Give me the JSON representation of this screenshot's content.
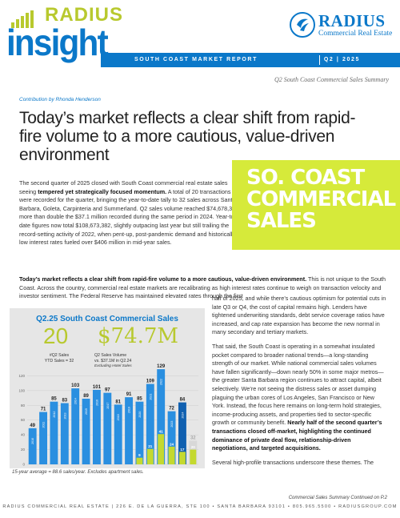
{
  "masthead": {
    "brand_small": "RADIUS",
    "brand_big": "insight",
    "logo_name": "RADIUS",
    "logo_sub": "Commercial Real Estate",
    "band_left": "SOUTH COAST MARKET REPORT",
    "band_right": "Q2 | 2025"
  },
  "summary_title": "Q2 South Coast Commercial Sales Summary",
  "contribution": "Contribution by Rhonda Henderson",
  "headline": "Today’s market reflects a clear shift from rapid-fire volume to a more cautious, value-driven environment",
  "intro": {
    "p1": "The second quarter of 2025 closed with South Coast commercial real estate sales seeing ",
    "p1_bold": "tempered yet strategically focused momentum.",
    "p2": " A total of 20 transactions were recorded for the quarter, bringing the year-to-date tally to 32 sales across Santa Barbara, Goleta, Carpinteria and Summerland. Q2 sales volume reached $74,678,382—more than double the $37.1 million recorded during the same period in 2024. Year-to-date figures now total $108,673,382, slightly outpacing last year but still trailing the record-setting activity of 2022, when pent-up, post-pandemic demand and historically low interest rates fueled over $406 million in mid-year sales."
  },
  "hero": [
    "SO. COAST",
    "COMMERCIAL",
    "SALES"
  ],
  "lead": {
    "bold": "Today’s market reflects a clear shift from rapid-fire volume to a more cautious, value-driven environment.",
    "text": " This is not unique to the South Coast. Across the country, commercial real estate markets are recalibrating as high interest rates continue to weigh on transaction velocity and investor sentiment. The Federal Reserve has maintained elevated rates through the first"
  },
  "right_col": {
    "p1": "half of 2025, and while there’s cautious optimism for potential cuts in late Q3 or Q4, the cost of capital remains high. Lenders have tightened underwriting standards, debt service coverage ratios have increased, and cap rate expansion has become the new normal in many secondary and tertiary markets.",
    "p2": "That said, the South Coast is operating in a somewhat insulated pocket compared to broader national trends—a long-standing strength of our market. While national commercial sales volumes have fallen significantly—down nearly 50% in some major metros—the greater Santa Barbara region continues to attract capital, albeit selectively. We’re not seeing the distress sales or asset dumping plaguing the urban cores of Los Angeles, San Francisco or New York. Instead, the focus here remains on long-term hold strategies, income-producing assets, and properties tied to sector-specific growth or community benefit. ",
    "p2_bold": "Nearly half of the second quarter’s transactions closed off-market, highlighting the continued dominance of private deal flow, relationship-driven negotiations, and targeted acquisitions.",
    "p3": "Several high-profile transactions underscore these themes. The"
  },
  "continued": "Commercial Sales Summary Continued on P.2",
  "footnote": "15-year average = 88.6 sales/year.  Excludes apartment sales.",
  "footer": "RADIUS COMMERCIAL REAL ESTATE  |  226 E. DE LA GUERRA, STE 100 • SANTA BARBARA 93101 • 805.965.5500 • RADIUSGROUP.COM",
  "colors": {
    "brand_blue": "#0b78c9",
    "lime": "#b8c92e",
    "hero_lime": "#d6ea3a",
    "ytd_lime": "#c4d92f",
    "bar_blue": "#2a8fe0",
    "bar_current": "#1060b0"
  },
  "chart_data": {
    "type": "bar",
    "title": "Q2.25 South Coast Commercial Sales",
    "kpis": [
      {
        "value": "20",
        "caption1": "#Q2 Sales",
        "caption2": "YTD Sales = 32"
      },
      {
        "value": "$74.7M",
        "caption1": "Q2 Sales Volume",
        "caption2": "vs. $37.1M in Q2.24",
        "caption3": "Excluding Hotel Sales"
      }
    ],
    "categories": [
      "2010",
      "2011",
      "2012",
      "2013",
      "2014",
      "2015",
      "2016",
      "2017",
      "2018",
      "2019",
      "2020",
      "2021",
      "2022",
      "2023",
      "2024",
      "2025"
    ],
    "series": [
      {
        "name": "Annual",
        "values": [
          49,
          71,
          85,
          83,
          103,
          89,
          101,
          97,
          81,
          91,
          85,
          109,
          129,
          72,
          84,
          32
        ]
      },
      {
        "name": "YTD",
        "values": [
          null,
          null,
          null,
          null,
          null,
          null,
          null,
          null,
          null,
          null,
          9,
          21,
          41,
          24,
          17,
          20
        ]
      }
    ],
    "ylim": [
      0,
      140
    ],
    "yticks": [
      0,
      20,
      40,
      60,
      80,
      100,
      120
    ],
    "grid": true,
    "footnote": "15-year average = 88.6 sales/year.  Excludes apartment sales."
  }
}
